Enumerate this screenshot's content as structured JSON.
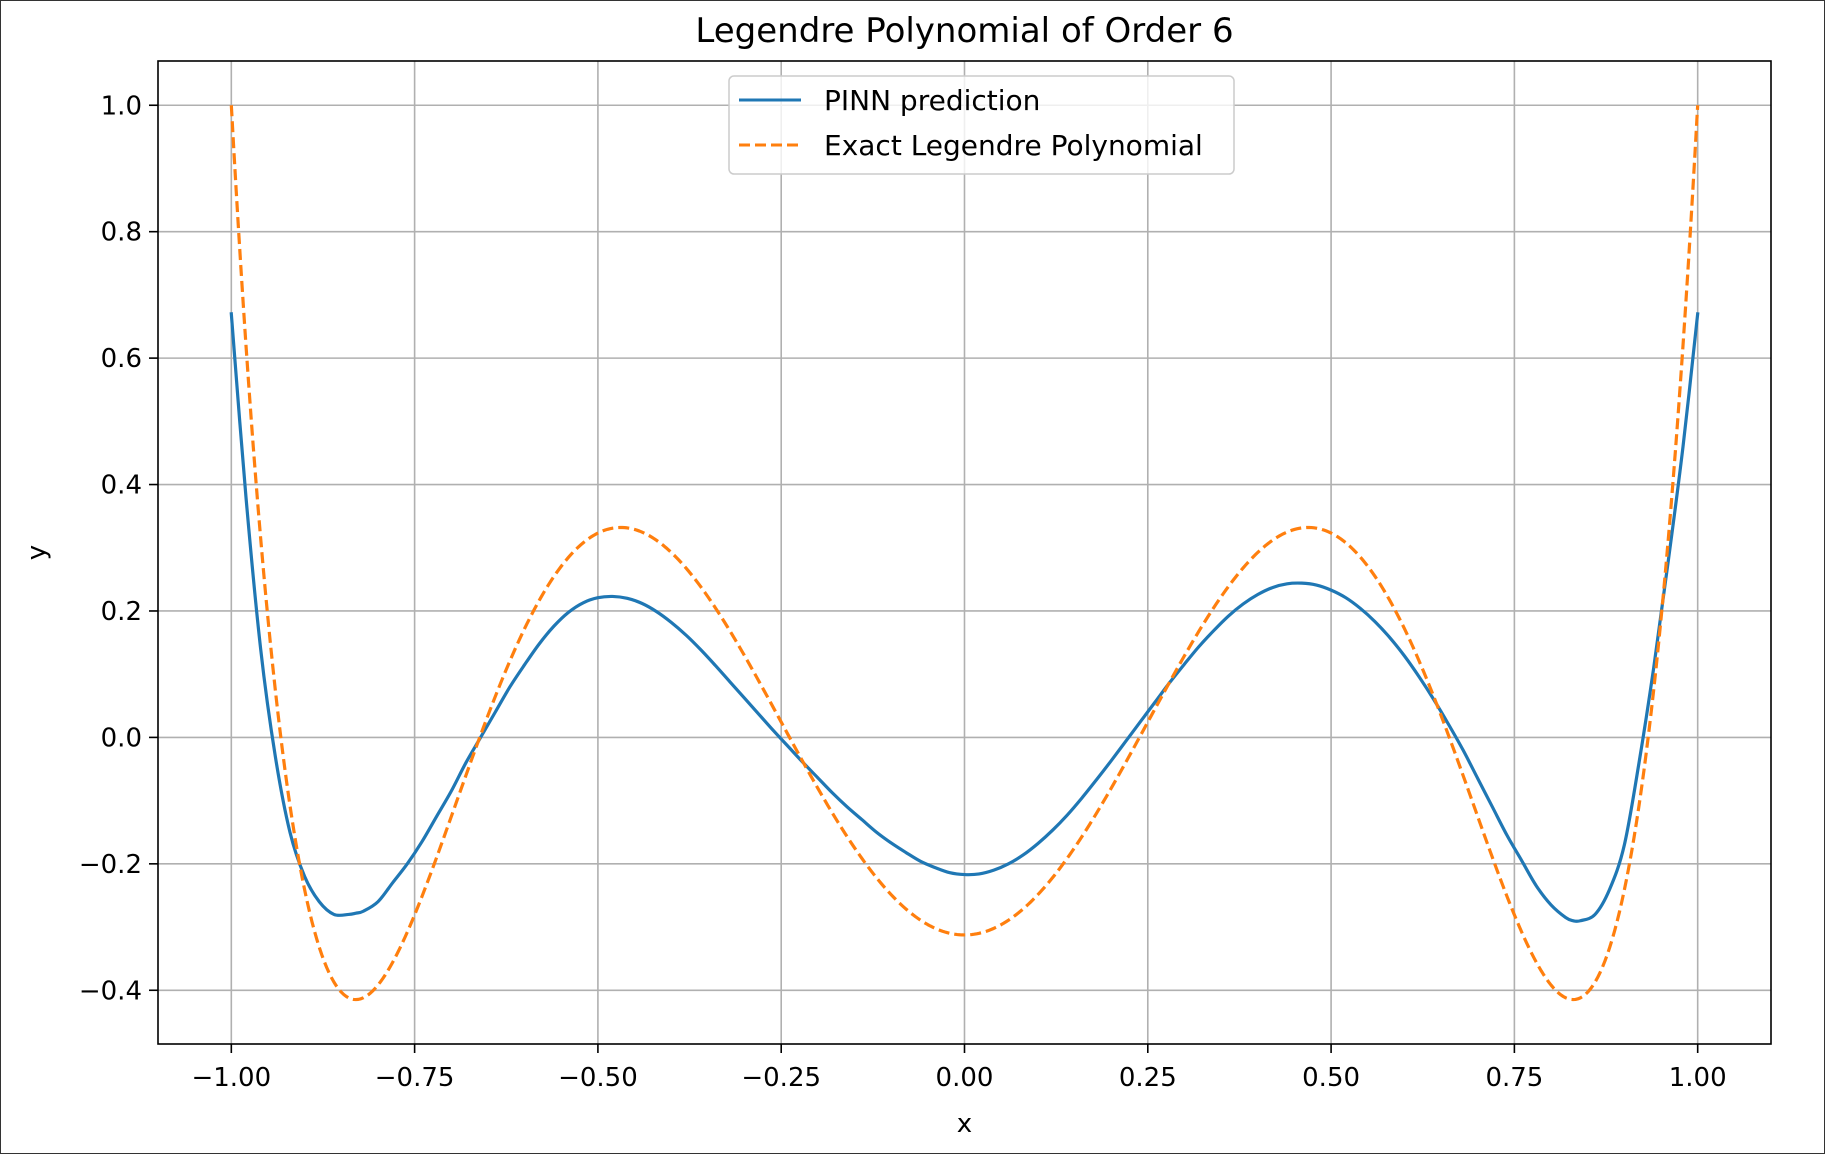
{
  "chart_data": {
    "type": "line",
    "title": "Legendre Polynomial of Order 6",
    "xlabel": "x",
    "ylabel": "y",
    "xlim": [
      -1.1,
      1.1
    ],
    "ylim": [
      -0.485,
      1.07
    ],
    "xticks": [
      -1.0,
      -0.75,
      -0.5,
      -0.25,
      0.0,
      0.25,
      0.5,
      0.75,
      1.0
    ],
    "xtick_labels": [
      "−1.00",
      "−0.75",
      "−0.50",
      "−0.25",
      "0.00",
      "0.25",
      "0.50",
      "0.75",
      "1.00"
    ],
    "yticks": [
      -0.4,
      -0.2,
      0.0,
      0.2,
      0.4,
      0.6,
      0.8,
      1.0
    ],
    "ytick_labels": [
      "−0.4",
      "−0.2",
      "0.0",
      "0.2",
      "0.4",
      "0.6",
      "0.8",
      "1.0"
    ],
    "grid": true,
    "legend_position": "upper center",
    "series": [
      {
        "name": "PINN prediction",
        "color": "#1f77b4",
        "style": "solid",
        "x": [
          -1.0,
          -0.98,
          -0.96,
          -0.94,
          -0.92,
          -0.9,
          -0.88,
          -0.86,
          -0.84,
          -0.83,
          -0.82,
          -0.8,
          -0.78,
          -0.76,
          -0.74,
          -0.72,
          -0.7,
          -0.68,
          -0.66,
          -0.64,
          -0.62,
          -0.6,
          -0.58,
          -0.56,
          -0.54,
          -0.52,
          -0.5,
          -0.48,
          -0.46,
          -0.44,
          -0.42,
          -0.4,
          -0.38,
          -0.36,
          -0.34,
          -0.32,
          -0.3,
          -0.28,
          -0.26,
          -0.24,
          -0.22,
          -0.2,
          -0.18,
          -0.16,
          -0.14,
          -0.12,
          -0.1,
          -0.08,
          -0.06,
          -0.04,
          -0.02,
          0.0,
          0.02,
          0.04,
          0.06,
          0.08,
          0.1,
          0.12,
          0.14,
          0.16,
          0.18,
          0.2,
          0.22,
          0.24,
          0.26,
          0.28,
          0.3,
          0.32,
          0.34,
          0.36,
          0.38,
          0.4,
          0.42,
          0.44,
          0.46,
          0.48,
          0.5,
          0.52,
          0.54,
          0.56,
          0.58,
          0.6,
          0.62,
          0.64,
          0.66,
          0.68,
          0.7,
          0.72,
          0.74,
          0.76,
          0.78,
          0.8,
          0.82,
          0.83,
          0.84,
          0.86,
          0.88,
          0.9,
          0.92,
          0.94,
          0.96,
          0.98,
          1.0
        ],
        "y": [
          0.67,
          0.38,
          0.14,
          -0.03,
          -0.15,
          -0.22,
          -0.26,
          -0.28,
          -0.28,
          -0.278,
          -0.275,
          -0.26,
          -0.23,
          -0.2,
          -0.165,
          -0.125,
          -0.085,
          -0.04,
          0.0,
          0.04,
          0.08,
          0.115,
          0.148,
          0.176,
          0.198,
          0.213,
          0.221,
          0.223,
          0.22,
          0.212,
          0.199,
          0.182,
          0.162,
          0.139,
          0.114,
          0.088,
          0.062,
          0.036,
          0.01,
          -0.015,
          -0.04,
          -0.064,
          -0.088,
          -0.11,
          -0.13,
          -0.15,
          -0.167,
          -0.182,
          -0.196,
          -0.206,
          -0.214,
          -0.217,
          -0.216,
          -0.21,
          -0.2,
          -0.186,
          -0.168,
          -0.147,
          -0.123,
          -0.096,
          -0.067,
          -0.037,
          -0.006,
          0.025,
          0.056,
          0.087,
          0.116,
          0.144,
          0.169,
          0.192,
          0.211,
          0.226,
          0.237,
          0.243,
          0.244,
          0.241,
          0.233,
          0.221,
          0.204,
          0.183,
          0.158,
          0.129,
          0.096,
          0.06,
          0.021,
          -0.02,
          -0.065,
          -0.11,
          -0.155,
          -0.195,
          -0.235,
          -0.265,
          -0.285,
          -0.29,
          -0.29,
          -0.28,
          -0.24,
          -0.17,
          -0.04,
          0.11,
          0.28,
          0.46,
          0.67
        ]
      },
      {
        "name": "Exact Legendre Polynomial",
        "color": "#ff7f0e",
        "style": "dashed",
        "formula": "(231x^6-315x^4+105x^2-5)/16"
      }
    ]
  }
}
